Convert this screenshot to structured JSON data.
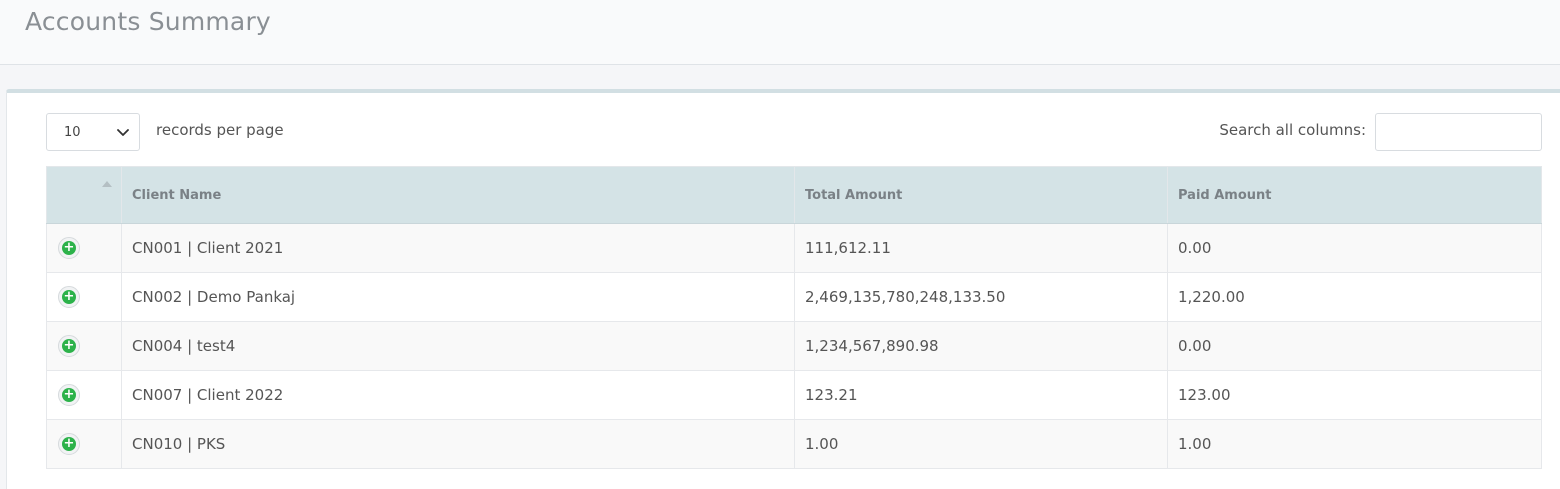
{
  "page": {
    "title": "Accounts Summary"
  },
  "controls": {
    "page_length": "10",
    "page_length_label": "records per page",
    "search_label": "Search all columns:",
    "search_value": ""
  },
  "table": {
    "columns": [
      "",
      "Client Name",
      "Total Amount",
      "Paid Amount"
    ],
    "rows": [
      {
        "client": "CN001 | Client 2021",
        "total": "111,612.11",
        "paid": "0.00"
      },
      {
        "client": "CN002 | Demo Pankaj",
        "total": "2,469,135,780,248,133.50",
        "paid": "1,220.00"
      },
      {
        "client": "CN004 | test4",
        "total": "1,234,567,890.98",
        "paid": "0.00"
      },
      {
        "client": "CN007 | Client 2022",
        "total": "123.21",
        "paid": "123.00"
      },
      {
        "client": "CN010 | PKS",
        "total": "1.00",
        "paid": "1.00"
      }
    ]
  },
  "icons": {
    "expand": "expand-row-icon",
    "sort": "sort-ascending-icon",
    "select": "chevron-down-icon"
  }
}
